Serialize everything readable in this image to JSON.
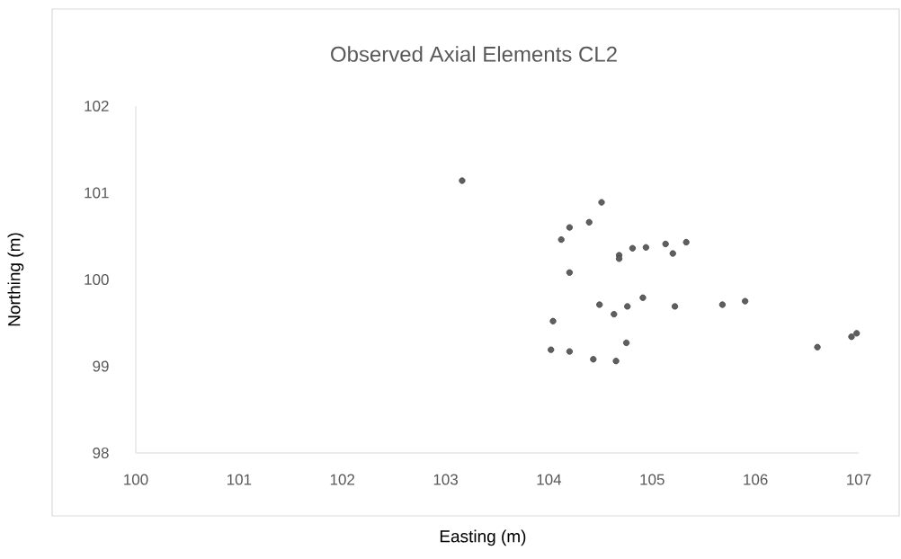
{
  "chart_data": {
    "type": "scatter",
    "title": "Observed Axial Elements CL2",
    "xlabel": "Easting (m)",
    "ylabel": "Northing  (m)",
    "xlim": [
      100,
      107
    ],
    "ylim": [
      98,
      102
    ],
    "xticks": [
      100,
      101,
      102,
      103,
      104,
      105,
      106,
      107
    ],
    "yticks": [
      98,
      99,
      100,
      101,
      102
    ],
    "grid": false,
    "marker": "circle",
    "series": [
      {
        "color": "#5f5f5f",
        "x": [
          103.16,
          104.51,
          104.39,
          104.2,
          104.12,
          104.68,
          104.68,
          104.81,
          104.94,
          105.13,
          105.33,
          105.2,
          104.2,
          104.49,
          104.63,
          104.76,
          104.91,
          105.22,
          105.68,
          105.9,
          104.04,
          104.02,
          104.2,
          104.43,
          104.65,
          104.75,
          106.6,
          106.93,
          106.98
        ],
        "values": [
          101.14,
          100.89,
          100.66,
          100.6,
          100.46,
          100.28,
          100.24,
          100.36,
          100.37,
          100.41,
          100.43,
          100.3,
          100.08,
          99.71,
          99.6,
          99.69,
          99.79,
          99.69,
          99.71,
          99.75,
          99.52,
          99.19,
          99.17,
          99.08,
          99.06,
          99.27,
          99.22,
          99.34,
          99.38
        ]
      }
    ]
  }
}
